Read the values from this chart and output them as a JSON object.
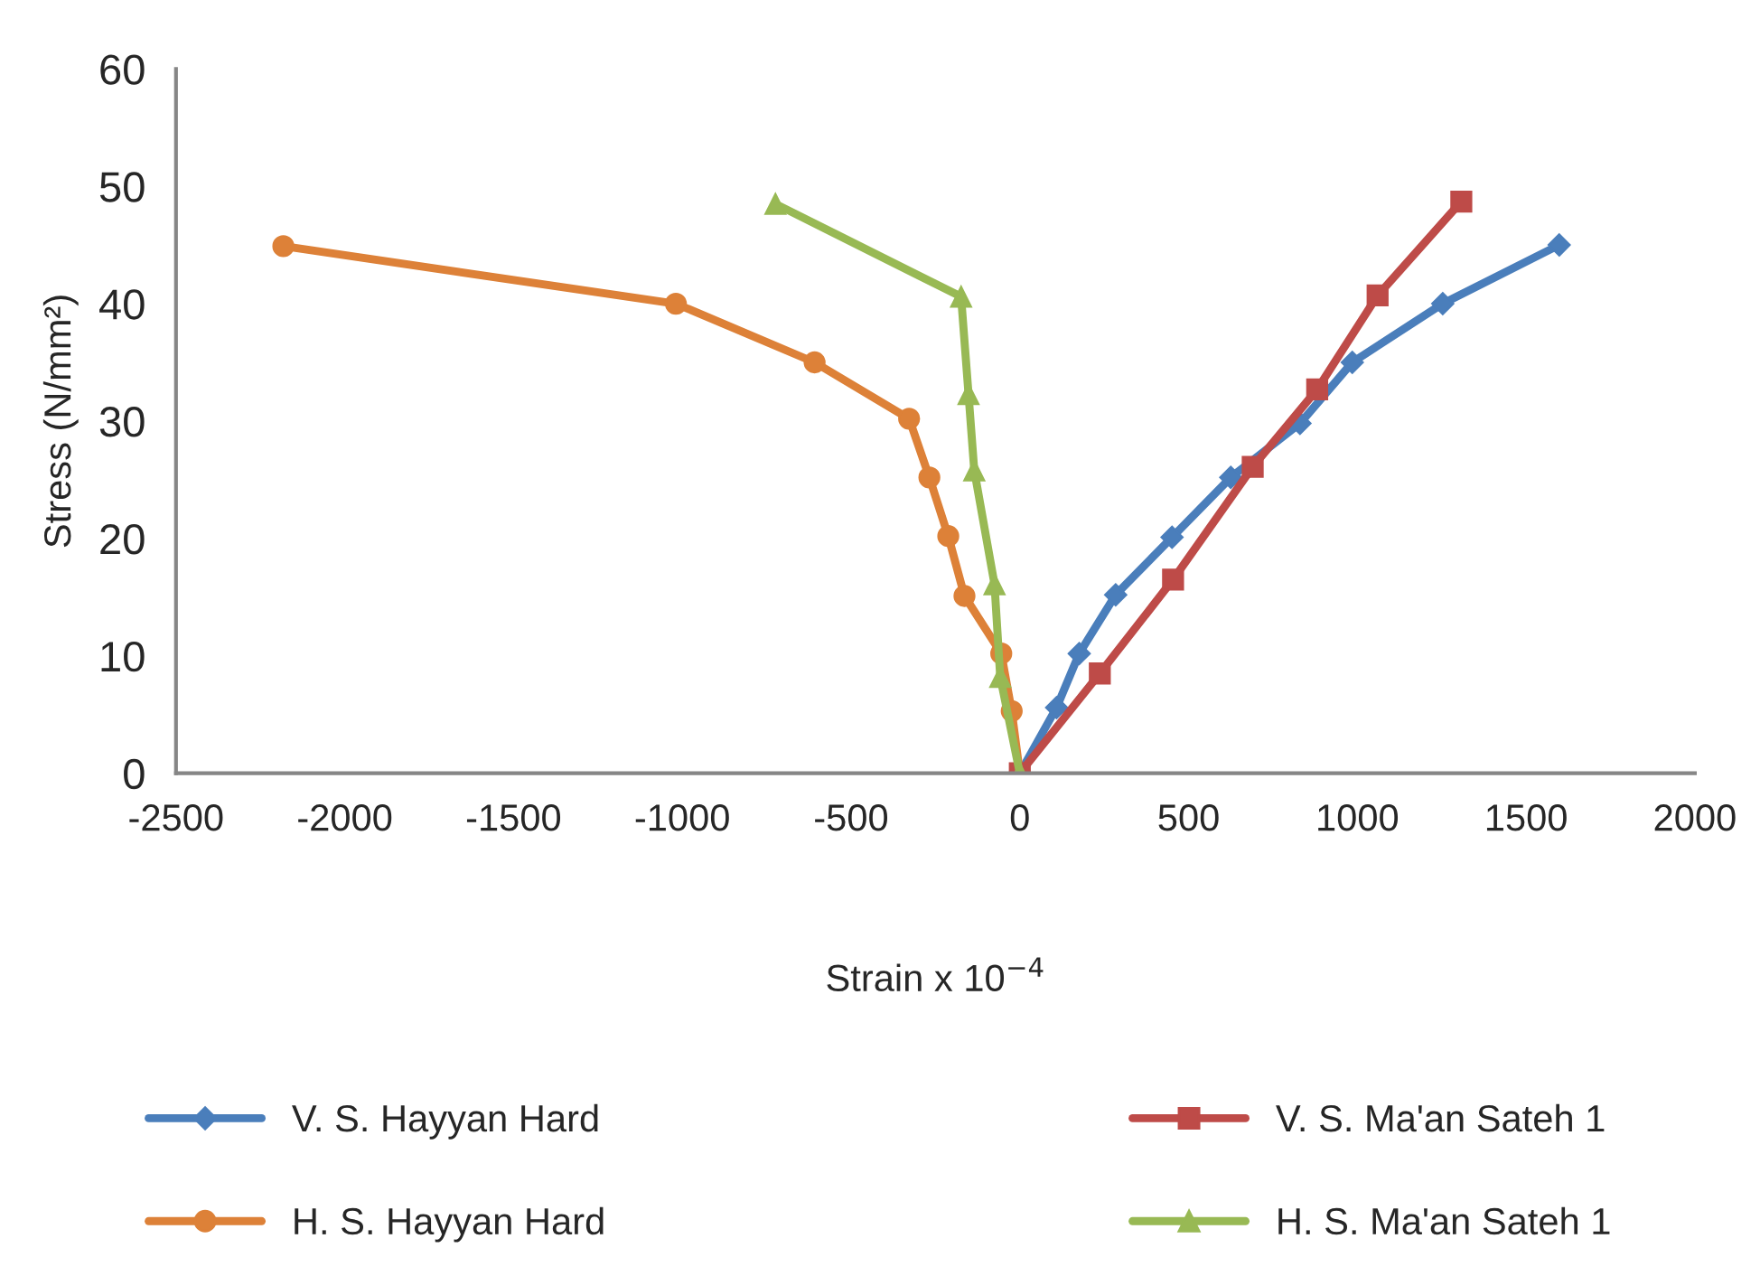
{
  "chart_data": {
    "type": "line",
    "xlabel": "Strain x 10$^{−4}$",
    "ylabel": "Stress (N/mm²)",
    "xlim": [
      -2500,
      2000
    ],
    "xticks": [
      -2500,
      -2000,
      -1500,
      -1000,
      -500,
      0,
      500,
      1000,
      1500,
      2000
    ],
    "ylim": [
      0,
      60
    ],
    "yticks": [
      0,
      10,
      20,
      30,
      40,
      50,
      60
    ],
    "grid": false,
    "legend": "bottom",
    "series": [
      {
        "name": "V. S. Hayyan Hard",
        "color": "#4a7ebb",
        "marker": "diamond",
        "x": [
          0,
          109,
          176,
          284,
          451,
          625,
          830,
          985,
          1253,
          1598
        ],
        "values": [
          0,
          5.6,
          10.2,
          15.2,
          20.1,
          25.2,
          29.8,
          35,
          40,
          45
        ]
      },
      {
        "name": "H. S. Hayyan Hard",
        "color": "#dd8138",
        "marker": "circle",
        "x": [
          0,
          -24,
          -55,
          -164,
          -212,
          -268,
          -328,
          -608,
          -1019,
          -2182
        ],
        "values": [
          0,
          5.3,
          10.2,
          15.1,
          20.2,
          25.2,
          30.2,
          35,
          40,
          44.9
        ]
      },
      {
        "name": "V. S. Ma'an Sateh 1",
        "color": "#be4b48",
        "marker": "square",
        "x": [
          0,
          237,
          454,
          690,
          881,
          1060,
          1308
        ],
        "values": [
          0,
          8.5,
          16.5,
          26.1,
          32.7,
          40.7,
          48.7
        ]
      },
      {
        "name": "H. S. Ma'an Sateh 1",
        "color": "#98b954",
        "marker": "triangle",
        "x": [
          0,
          -58,
          -75,
          -135,
          -152,
          -174,
          -724
        ],
        "values": [
          0,
          8.2,
          16.1,
          25.8,
          32.3,
          40.6,
          48.5
        ]
      }
    ]
  }
}
